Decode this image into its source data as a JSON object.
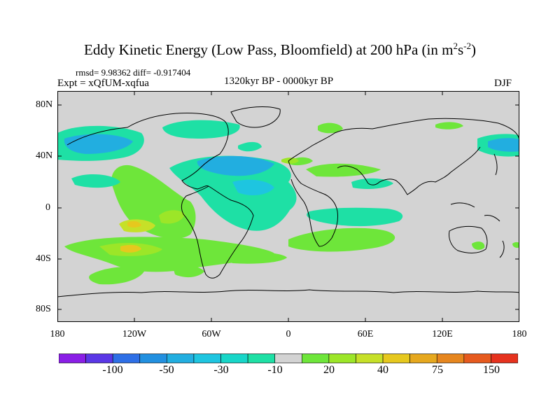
{
  "title": {
    "main": "Eddy Kinetic Energy (Low Pass, Bloomfield) at 200 hPa (in m",
    "exp1": "2",
    "mid": "s",
    "exp2": "-2",
    "close": ")"
  },
  "stats": "rmsd= 9.98362 diff= -0.917404",
  "expt": "Expt = xQfUM-xqfua",
  "period": "1320kyr BP - 0000kyr BP",
  "season": "DJF",
  "map": {
    "lat_labels": [
      "80N",
      "40N",
      "0",
      "40S",
      "80S"
    ],
    "lon_labels": [
      "180",
      "120W",
      "60W",
      "0",
      "60E",
      "120E",
      "180"
    ],
    "land_color": "#d3d3d3"
  },
  "colorbar": {
    "colors": [
      "#8a1ee6",
      "#5a37e6",
      "#2e6fe6",
      "#2290e0",
      "#22aee0",
      "#1ec5e0",
      "#18d6c8",
      "#1ee0a5",
      "#d3d3d3",
      "#6ee63a",
      "#9ce628",
      "#c6e028",
      "#e6c81e",
      "#e6a81e",
      "#e6861e",
      "#e65a1e",
      "#e6321e"
    ],
    "labels": [
      "-100",
      "-50",
      "-30",
      "-10",
      "20",
      "40",
      "75",
      "150"
    ]
  }
}
